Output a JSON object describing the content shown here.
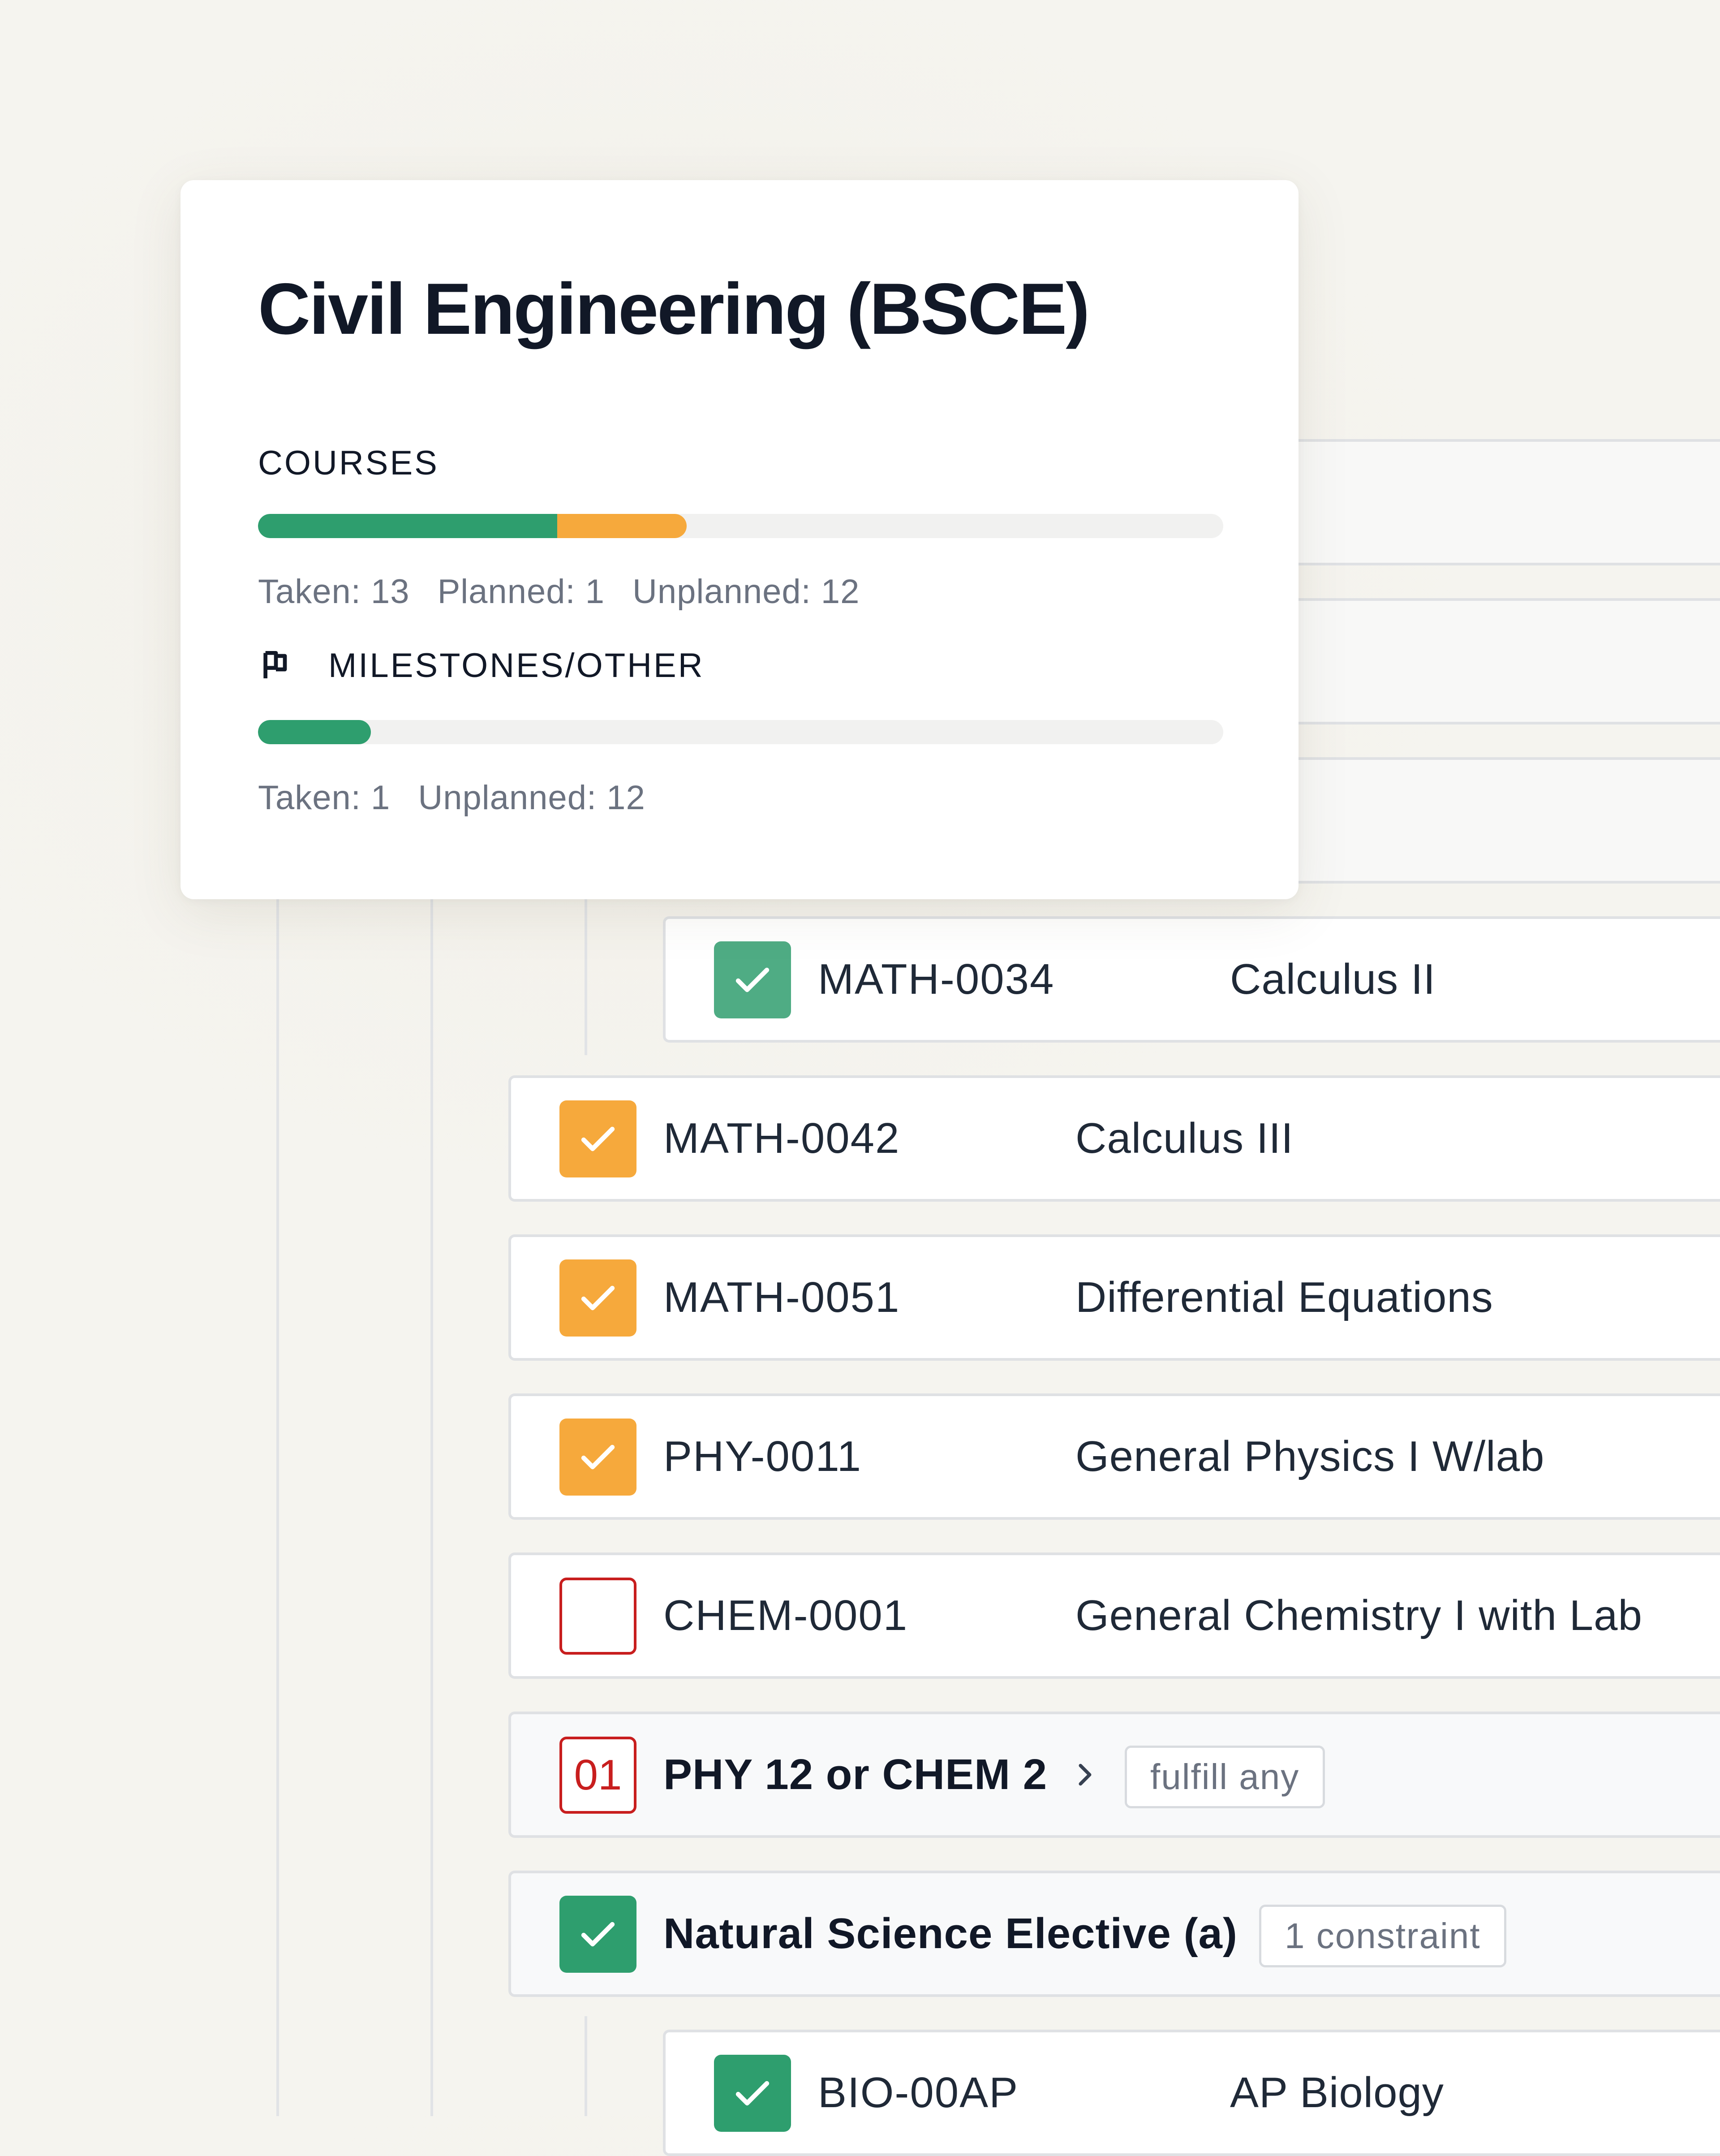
{
  "program": {
    "title": "Civil Engineering (BSCE)"
  },
  "courses_summary": {
    "label": "COURSES",
    "taken_fraction": 0.31,
    "planned_fraction": 0.134,
    "stats": {
      "taken": "Taken: 13",
      "planned": "Planned: 1",
      "unplanned": "Unplanned: 12"
    }
  },
  "milestones_summary": {
    "icon": "flag-icon",
    "label": "MILESTONES/OTHER",
    "taken_fraction": 0.117,
    "stats": {
      "taken": "Taken: 1",
      "unplanned": "Unplanned: 12"
    }
  },
  "colors": {
    "taken": "#2e9e6e",
    "planned": "#f6a93c",
    "missing": "#c81e1e"
  },
  "requirements": [
    {
      "status": "taken",
      "code": "MATH-0034",
      "name": "Calculus II"
    },
    {
      "status": "planned",
      "code": "MATH-0042",
      "name": "Calculus III"
    },
    {
      "status": "planned",
      "code": "MATH-0051",
      "name": "Differential Equations"
    },
    {
      "status": "planned",
      "code": "PHY-0011",
      "name": "General Physics I W/lab"
    },
    {
      "status": "unplanned",
      "code": "CHEM-0001",
      "name": "General Chemistry I with Lab"
    },
    {
      "status": "unplanned",
      "counter": "01",
      "title": "PHY 12 or CHEM 2",
      "tag": "fulfill any",
      "icon": "chevron-right-icon"
    },
    {
      "status": "taken",
      "title": "Natural Science Elective (a)",
      "tag": "1 constraint"
    },
    {
      "status": "taken",
      "code": "BIO-00AP",
      "name": "AP Biology"
    }
  ]
}
